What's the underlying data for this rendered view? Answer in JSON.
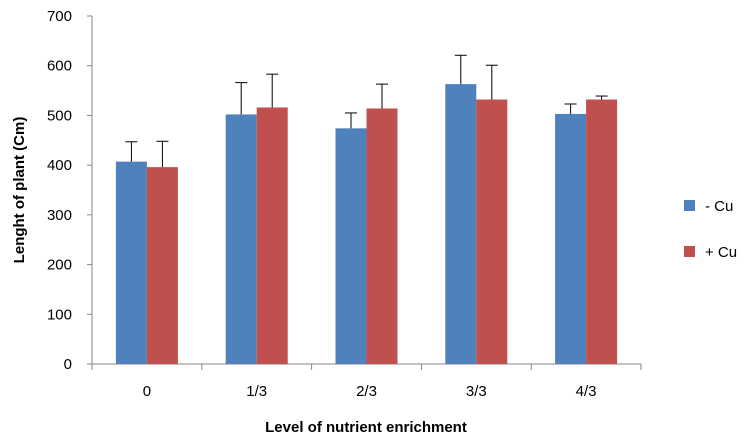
{
  "chart_data": {
    "type": "bar",
    "title": "",
    "xlabel": "Level of nutrient enrichment",
    "ylabel": "Lenght of plant  (Cm)",
    "ylim": [
      0,
      700
    ],
    "yticks": [
      0,
      100,
      200,
      300,
      400,
      500,
      600,
      700
    ],
    "categories": [
      "0",
      "1/3",
      "2/3",
      "3/3",
      "4/3"
    ],
    "grid": false,
    "legend_position": "right",
    "series": [
      {
        "name": "- Cu",
        "color": "#4f81bd",
        "values": [
          407,
          502,
          474,
          563,
          503
        ],
        "errors": [
          40,
          64,
          31,
          58,
          20
        ]
      },
      {
        "name": "+ Cu",
        "color": "#c0504d",
        "values": [
          396,
          516,
          514,
          532,
          532
        ],
        "errors": [
          52,
          67,
          49,
          69,
          7
        ]
      }
    ]
  }
}
